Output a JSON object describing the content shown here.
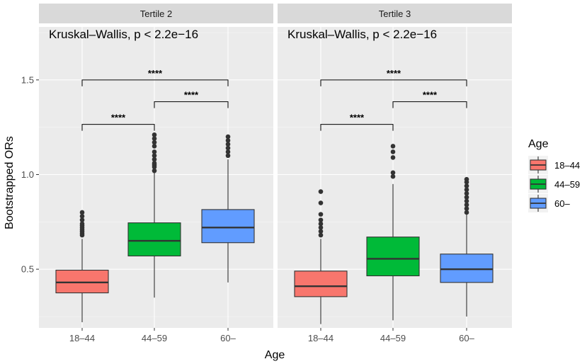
{
  "chart_data": {
    "type": "box",
    "ylabel": "Bootstrapped ORs",
    "xlabel": "Age",
    "ylim": [
      0.19,
      1.78
    ],
    "yticks": [
      0.5,
      1.0,
      1.5
    ],
    "ytick_labels": [
      "0.5",
      "1.0",
      "1.5"
    ],
    "categories": [
      "18–44",
      "44–59",
      "60–"
    ],
    "colors": [
      "#F8766D",
      "#00BA38",
      "#619CFF"
    ],
    "legend": {
      "title": "Age",
      "entries": [
        "18–44",
        "44–59",
        "60–"
      ]
    },
    "panels": [
      {
        "strip": "Tertile 2",
        "annotation": "Kruskal–Wallis, p < 2.2e−16",
        "boxes": [
          {
            "category": "18–44",
            "whisker_low": 0.22,
            "q1": 0.375,
            "median": 0.43,
            "q3": 0.495,
            "whisker_high": 0.66,
            "outliers": [
              0.68,
              0.69,
              0.7,
              0.71,
              0.72,
              0.73,
              0.74,
              0.76,
              0.78,
              0.8
            ]
          },
          {
            "category": "44–59",
            "whisker_low": 0.35,
            "q1": 0.57,
            "median": 0.65,
            "q3": 0.745,
            "whisker_high": 1.01,
            "outliers": [
              1.02,
              1.04,
              1.05,
              1.06,
              1.08,
              1.1,
              1.12,
              1.15,
              1.17,
              1.19,
              1.21
            ]
          },
          {
            "category": "60–",
            "whisker_low": 0.43,
            "q1": 0.64,
            "median": 0.72,
            "q3": 0.815,
            "whisker_high": 1.08,
            "outliers": [
              1.1,
              1.12,
              1.14,
              1.16,
              1.18,
              1.2
            ]
          }
        ],
        "comparisons": [
          {
            "from": 0,
            "to": 1,
            "label": "****",
            "y": 1.265
          },
          {
            "from": 1,
            "to": 2,
            "label": "****",
            "y": 1.385
          },
          {
            "from": 0,
            "to": 2,
            "label": "****",
            "y": 1.5
          }
        ]
      },
      {
        "strip": "Tertile 3",
        "annotation": "Kruskal–Wallis, p < 2.2e−16",
        "boxes": [
          {
            "category": "18–44",
            "whisker_low": 0.21,
            "q1": 0.355,
            "median": 0.41,
            "q3": 0.49,
            "whisker_high": 0.66,
            "outliers": [
              0.68,
              0.7,
              0.72,
              0.74,
              0.76,
              0.79,
              0.85,
              0.91
            ]
          },
          {
            "category": "44–59",
            "whisker_low": 0.23,
            "q1": 0.465,
            "median": 0.555,
            "q3": 0.67,
            "whisker_high": 0.95,
            "outliers": [
              0.99,
              1.01,
              1.09,
              1.12,
              1.15
            ]
          },
          {
            "category": "60–",
            "whisker_low": 0.25,
            "q1": 0.43,
            "median": 0.5,
            "q3": 0.58,
            "whisker_high": 0.79,
            "outliers": [
              0.8,
              0.82,
              0.84,
              0.86,
              0.88,
              0.9,
              0.92,
              0.94,
              0.96,
              0.975
            ]
          }
        ],
        "comparisons": [
          {
            "from": 0,
            "to": 1,
            "label": "****",
            "y": 1.265
          },
          {
            "from": 1,
            "to": 2,
            "label": "****",
            "y": 1.385
          },
          {
            "from": 0,
            "to": 2,
            "label": "****",
            "y": 1.5
          }
        ]
      }
    ]
  }
}
